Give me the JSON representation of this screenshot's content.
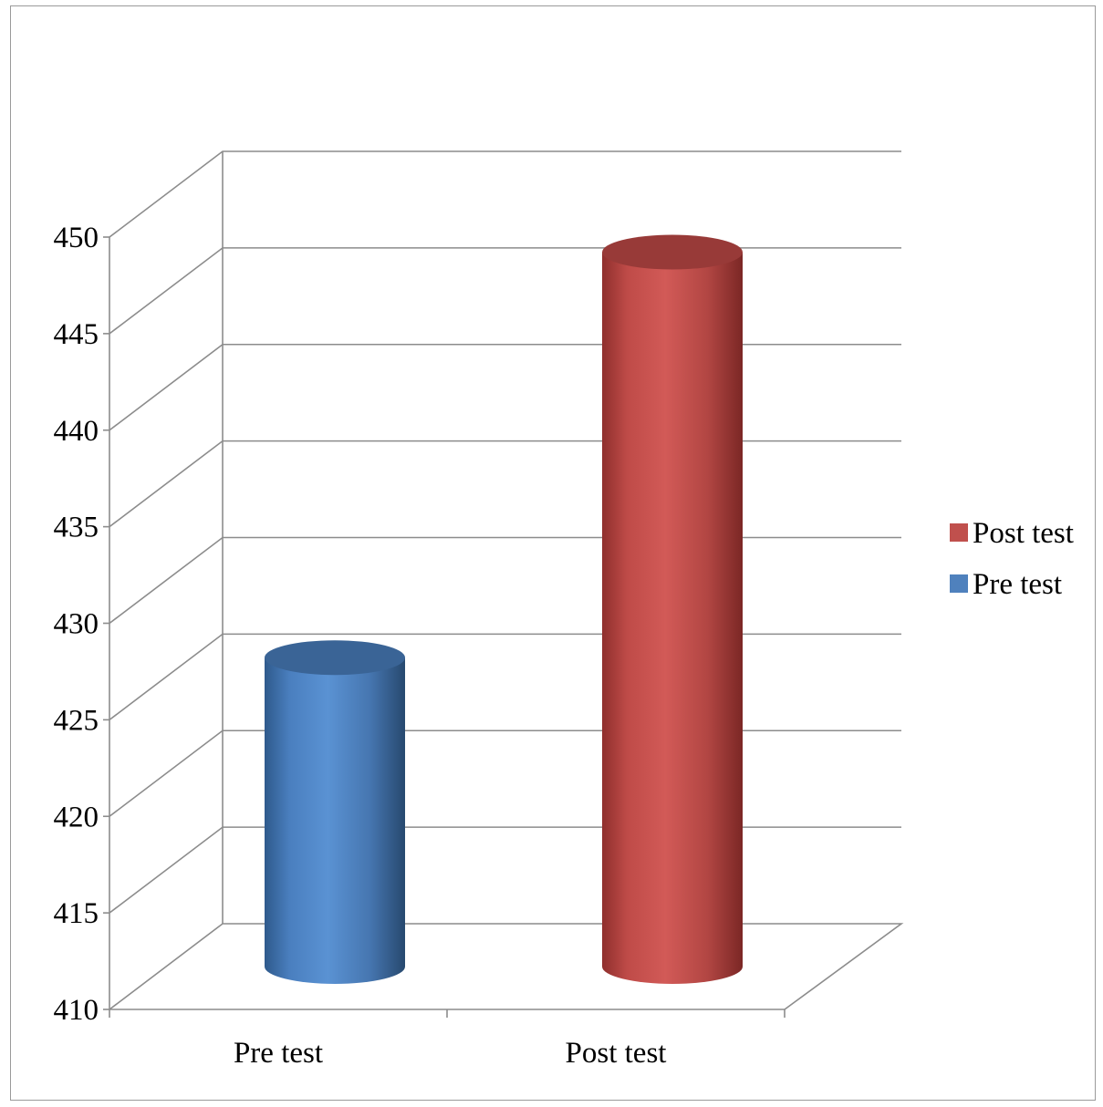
{
  "chart_data": {
    "type": "bar",
    "style": "3d-cylinder",
    "categories": [
      "Pre test",
      "Post test"
    ],
    "values": [
      426,
      447
    ],
    "colors": [
      "#4f81bd",
      "#c0504d"
    ],
    "ylim": [
      410,
      450
    ],
    "yticks": [
      "410",
      "415",
      "420",
      "425",
      "430",
      "435",
      "440",
      "445",
      "450"
    ],
    "grid": true,
    "legend": {
      "placement": "right",
      "entries": [
        {
          "label": "Post test",
          "color": "#c0504d"
        },
        {
          "label": "Pre test",
          "color": "#4f81bd"
        }
      ]
    },
    "title": "",
    "xlabel": "",
    "ylabel": ""
  }
}
